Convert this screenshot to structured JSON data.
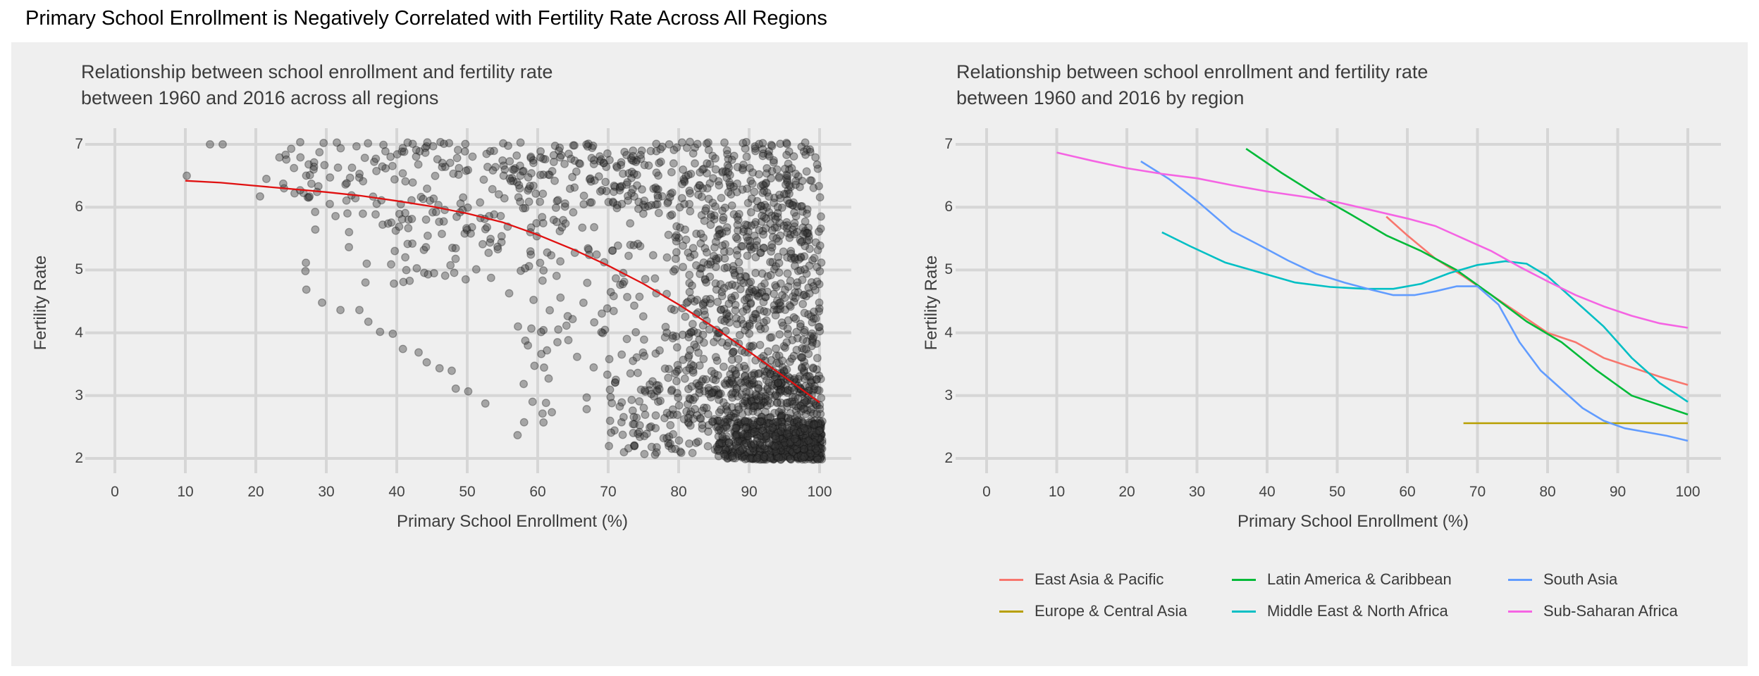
{
  "page": {
    "title": "Primary School Enrollment is Negatively Correlated with Fertility Rate Across All Regions"
  },
  "colors": {
    "page_background": "#ffffff",
    "panel_background": "#efefef",
    "gridline": "#d6d6d6",
    "text_dark": "#3c3c3c",
    "tick_text": "#444444",
    "trend_line_red": "#e01111",
    "scatter_fill": "rgba(55,55,55,0.40)",
    "scatter_stroke": "rgba(15,15,15,0.33)"
  },
  "legend": {
    "items": [
      {
        "label": "East Asia & Pacific",
        "color": "#F8766D"
      },
      {
        "label": "Europe & Central Asia",
        "color": "#B79F00"
      },
      {
        "label": "Latin America & Caribbean",
        "color": "#00BA38"
      },
      {
        "label": "Middle East & North Africa",
        "color": "#00BFC4"
      },
      {
        "label": "South Asia",
        "color": "#619CFF"
      },
      {
        "label": "Sub-Saharan Africa",
        "color": "#F564E3"
      }
    ]
  },
  "chart_data": [
    {
      "type": "scatter",
      "title": "Relationship between school enrollment and fertility rate\n between 1960 and 2016 across all regions",
      "xlabel": "Primary School Enrollment (%)",
      "ylabel": "Fertility Rate",
      "x_ticks": [
        0,
        10,
        20,
        30,
        40,
        50,
        60,
        70,
        80,
        90,
        100
      ],
      "y_ticks": [
        2,
        3,
        4,
        5,
        6,
        7
      ],
      "xlim": [
        -4,
        104
      ],
      "ylim": [
        1.75,
        7.25
      ],
      "grid": true,
      "trend_line": {
        "color": "#e01111",
        "points": [
          [
            10,
            6.42
          ],
          [
            15,
            6.39
          ],
          [
            20,
            6.34
          ],
          [
            25,
            6.29
          ],
          [
            30,
            6.24
          ],
          [
            35,
            6.18
          ],
          [
            40,
            6.1
          ],
          [
            45,
            6.01
          ],
          [
            50,
            5.9
          ],
          [
            55,
            5.76
          ],
          [
            60,
            5.56
          ],
          [
            65,
            5.33
          ],
          [
            70,
            5.07
          ],
          [
            75,
            4.78
          ],
          [
            80,
            4.45
          ],
          [
            85,
            4.09
          ],
          [
            90,
            3.7
          ],
          [
            95,
            3.3
          ],
          [
            100,
            2.89
          ]
        ]
      },
      "scatter_points_note": "Approx. 2300 country-year observations 1960-2016; fertility 2.0-7.0 vs enrollment 10-100%, sparse at low enrollment, extremely dense near enrollment 85-100% and fertility 2.0-3.0",
      "scatter_generation": {
        "seed": 7,
        "extra_points": [
          [
            13.5,
            7.0
          ],
          [
            15.3,
            7.0
          ],
          [
            10.2,
            6.5
          ],
          [
            21.5,
            6.45
          ],
          [
            24,
            6.3
          ],
          [
            27.5,
            6.68
          ],
          [
            28.2,
            6.6
          ],
          [
            33,
            5.9
          ],
          [
            30.5,
            6.05
          ],
          [
            25.5,
            6.22
          ]
        ],
        "chains": [
          {
            "n": 10,
            "from": [
              32.5,
              4.45
            ],
            "to": [
              48,
              3.3
            ],
            "jitter": 0.1
          }
        ],
        "clusters": [
          {
            "n": 10,
            "x": [
              26.5,
              30
            ],
            "y": [
              4.4,
              6.4
            ],
            "xpow": 1.0,
            "ypow": 1.0
          },
          {
            "n": 95,
            "x": [
              20,
              55
            ],
            "y": [
              6.15,
              7.04
            ],
            "xpow": 1.15,
            "ypow": 1.0
          },
          {
            "n": 165,
            "x": [
              55,
              79
            ],
            "y": [
              6.0,
              7.04
            ],
            "xpow": 1.0,
            "ypow": 1.0
          },
          {
            "n": 130,
            "x": [
              35,
              79
            ],
            "y": [
              4.75,
              6.15
            ],
            "xpow": 1.25,
            "ypow": 1.0
          },
          {
            "n": 30,
            "x": [
              30,
              55
            ],
            "y": [
              5.3,
              6.15
            ],
            "xpow": 1.0,
            "ypow": 1.0
          },
          {
            "n": 60,
            "x": [
              55,
              79
            ],
            "y": [
              3.2,
              4.75
            ],
            "xpow": 1.2,
            "ypow": 1.0
          },
          {
            "n": 16,
            "x": [
              47,
              74
            ],
            "y": [
              2.3,
              3.2
            ],
            "xpow": 1.0,
            "ypow": 1.0
          },
          {
            "n": 330,
            "x": [
              79,
              100.3
            ],
            "y": [
              5.3,
              7.04
            ],
            "xpow": 1.25,
            "ypow": 1.0
          },
          {
            "n": 390,
            "x": [
              79,
              100.3
            ],
            "y": [
              3.3,
              5.3
            ],
            "xpow": 1.3,
            "ypow": 1.0
          },
          {
            "n": 300,
            "x": [
              81,
              100.3
            ],
            "y": [
              2.55,
              3.35
            ],
            "xpow": 1.5,
            "ypow": 1.0
          },
          {
            "n": 620,
            "x": [
              85,
              100.4
            ],
            "y": [
              1.98,
              2.6
            ],
            "xpow": 1.6,
            "ypow": 1.25
          },
          {
            "n": 120,
            "x": [
              70,
              86
            ],
            "y": [
              2.05,
              3.3
            ],
            "xpow": 1.1,
            "ypow": 1.0
          }
        ]
      }
    },
    {
      "type": "line",
      "title": "Relationship between school enrollment and fertility rate\nbetween 1960 and 2016 by region",
      "xlabel": "Primary School Enrollment (%)",
      "ylabel": "Fertility Rate",
      "x_ticks": [
        0,
        10,
        20,
        30,
        40,
        50,
        60,
        70,
        80,
        90,
        100
      ],
      "y_ticks": [
        2,
        3,
        4,
        5,
        6,
        7
      ],
      "xlim": [
        -4,
        104
      ],
      "ylim": [
        1.75,
        7.25
      ],
      "grid": true,
      "legend_position": "bottom",
      "series": [
        {
          "name": "East Asia & Pacific",
          "color": "#F8766D",
          "points": [
            [
              57,
              5.85
            ],
            [
              60,
              5.55
            ],
            [
              64,
              5.18
            ],
            [
              68,
              4.9
            ],
            [
              72,
              4.6
            ],
            [
              76,
              4.3
            ],
            [
              80,
              4.0
            ],
            [
              84,
              3.85
            ],
            [
              88,
              3.6
            ],
            [
              92,
              3.45
            ],
            [
              96,
              3.3
            ],
            [
              100,
              3.17
            ]
          ]
        },
        {
          "name": "Europe & Central Asia",
          "color": "#B79F00",
          "points": [
            [
              68,
              2.56
            ],
            [
              100,
              2.56
            ]
          ]
        },
        {
          "name": "Latin America & Caribbean",
          "color": "#00BA38",
          "points": [
            [
              37,
              6.93
            ],
            [
              42,
              6.55
            ],
            [
              47,
              6.2
            ],
            [
              52,
              5.88
            ],
            [
              57,
              5.55
            ],
            [
              62,
              5.3
            ],
            [
              67,
              5.0
            ],
            [
              72,
              4.6
            ],
            [
              77,
              4.18
            ],
            [
              82,
              3.85
            ],
            [
              87,
              3.4
            ],
            [
              92,
              3.0
            ],
            [
              96,
              2.85
            ],
            [
              100,
              2.7
            ]
          ]
        },
        {
          "name": "Middle East & North Africa",
          "color": "#00BFC4",
          "points": [
            [
              25,
              5.6
            ],
            [
              29,
              5.38
            ],
            [
              34,
              5.12
            ],
            [
              39,
              4.96
            ],
            [
              44,
              4.8
            ],
            [
              49,
              4.73
            ],
            [
              54,
              4.7
            ],
            [
              58,
              4.7
            ],
            [
              62,
              4.78
            ],
            [
              66,
              4.95
            ],
            [
              70,
              5.08
            ],
            [
              74,
              5.14
            ],
            [
              77,
              5.1
            ],
            [
              80,
              4.9
            ],
            [
              84,
              4.5
            ],
            [
              88,
              4.1
            ],
            [
              92,
              3.6
            ],
            [
              96,
              3.2
            ],
            [
              100,
              2.9
            ]
          ]
        },
        {
          "name": "South Asia",
          "color": "#619CFF",
          "points": [
            [
              22,
              6.73
            ],
            [
              26,
              6.45
            ],
            [
              30,
              6.1
            ],
            [
              35,
              5.62
            ],
            [
              39,
              5.39
            ],
            [
              43,
              5.15
            ],
            [
              47,
              4.94
            ],
            [
              51,
              4.8
            ],
            [
              55,
              4.68
            ],
            [
              58,
              4.6
            ],
            [
              61,
              4.6
            ],
            [
              64,
              4.66
            ],
            [
              67,
              4.74
            ],
            [
              70,
              4.74
            ],
            [
              73,
              4.45
            ],
            [
              76,
              3.85
            ],
            [
              79,
              3.4
            ],
            [
              82,
              3.1
            ],
            [
              85,
              2.8
            ],
            [
              88,
              2.6
            ],
            [
              91,
              2.48
            ],
            [
              94,
              2.42
            ],
            [
              97,
              2.36
            ],
            [
              100,
              2.28
            ]
          ]
        },
        {
          "name": "Sub-Saharan Africa",
          "color": "#F564E3",
          "points": [
            [
              10,
              6.87
            ],
            [
              15,
              6.74
            ],
            [
              20,
              6.62
            ],
            [
              25,
              6.53
            ],
            [
              30,
              6.46
            ],
            [
              35,
              6.35
            ],
            [
              40,
              6.25
            ],
            [
              45,
              6.17
            ],
            [
              50,
              6.08
            ],
            [
              55,
              5.95
            ],
            [
              60,
              5.82
            ],
            [
              64,
              5.7
            ],
            [
              68,
              5.5
            ],
            [
              72,
              5.3
            ],
            [
              76,
              5.05
            ],
            [
              80,
              4.82
            ],
            [
              84,
              4.6
            ],
            [
              88,
              4.42
            ],
            [
              92,
              4.27
            ],
            [
              96,
              4.15
            ],
            [
              100,
              4.08
            ]
          ]
        }
      ]
    }
  ]
}
